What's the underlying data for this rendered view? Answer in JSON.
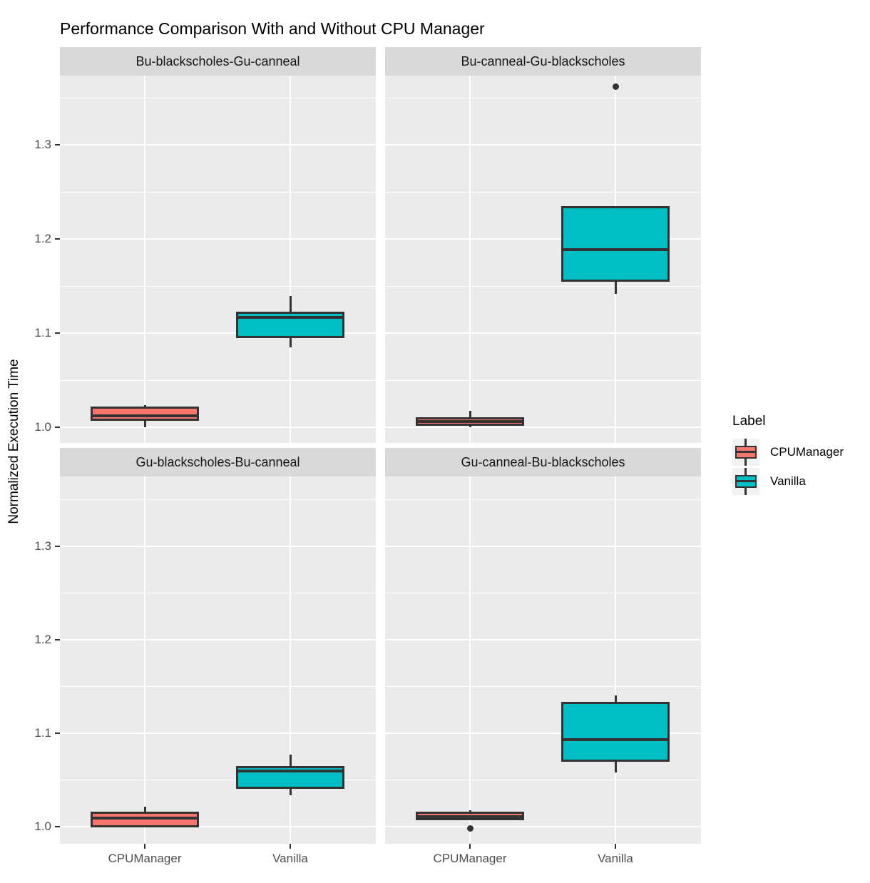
{
  "title": "Performance Comparison With and Without CPU Manager",
  "y_axis": {
    "label": "Normalized Execution Time",
    "tick_labels": [
      "1.0",
      "1.1",
      "1.2",
      "1.3"
    ],
    "tick_values": [
      1.0,
      1.1,
      1.2,
      1.3
    ],
    "minor_tick_values": [
      1.05,
      1.15,
      1.25,
      1.35
    ]
  },
  "x_axis": {
    "categories": [
      "CPUManager",
      "Vanilla"
    ]
  },
  "legend": {
    "title": "Label",
    "items": [
      {
        "label": "CPUManager",
        "color": "#F8766D"
      },
      {
        "label": "Vanilla",
        "color": "#00BFC4"
      }
    ]
  },
  "style": {
    "panel_bg": "#EBEBEB",
    "strip_bg": "#D9D9D9",
    "grid_color": "#FFFFFF",
    "box_border": "#333333",
    "outlier_color": "#333333",
    "tick_label_color": "#4D4D4D"
  },
  "chart_data": {
    "type": "boxplot",
    "title": "Performance Comparison With and Without CPU Manager",
    "xlabel": "",
    "ylabel": "Normalized Execution Time",
    "ylim": [
      0.982,
      1.376
    ],
    "grid": true,
    "legend_position": "right",
    "categories": [
      "CPUManager",
      "Vanilla"
    ],
    "series_colors": {
      "CPUManager": "#F8766D",
      "Vanilla": "#00BFC4"
    },
    "facets": [
      {
        "label": "Bu-blackscholes-Gu-canneal",
        "boxes": [
          {
            "category": "CPUManager",
            "whisker_low": 1.0,
            "q1": 1.007,
            "median": 1.012,
            "q3": 1.022,
            "whisker_high": 1.024,
            "outliers": []
          },
          {
            "category": "Vanilla",
            "whisker_low": 1.085,
            "q1": 1.095,
            "median": 1.117,
            "q3": 1.123,
            "whisker_high": 1.14,
            "outliers": []
          }
        ]
      },
      {
        "label": "Bu-canneal-Gu-blackscholes",
        "boxes": [
          {
            "category": "CPUManager",
            "whisker_low": 1.0,
            "q1": 1.002,
            "median": 1.006,
            "q3": 1.011,
            "whisker_high": 1.018,
            "outliers": []
          },
          {
            "category": "Vanilla",
            "whisker_low": 1.142,
            "q1": 1.155,
            "median": 1.189,
            "q3": 1.235,
            "whisker_high": 1.235,
            "outliers": [
              1.362
            ]
          }
        ]
      },
      {
        "label": "Gu-blackscholes-Bu-canneal",
        "boxes": [
          {
            "category": "CPUManager",
            "whisker_low": 0.999,
            "q1": 0.999,
            "median": 1.009,
            "q3": 1.016,
            "whisker_high": 1.021,
            "outliers": []
          },
          {
            "category": "Vanilla",
            "whisker_low": 1.033,
            "q1": 1.04,
            "median": 1.059,
            "q3": 1.065,
            "whisker_high": 1.077,
            "outliers": []
          }
        ]
      },
      {
        "label": "Gu-canneal-Bu-blackscholes",
        "boxes": [
          {
            "category": "CPUManager",
            "whisker_low": 1.007,
            "q1": 1.007,
            "median": 1.01,
            "q3": 1.016,
            "whisker_high": 1.017,
            "outliers": [
              0.998
            ]
          },
          {
            "category": "Vanilla",
            "whisker_low": 1.058,
            "q1": 1.069,
            "median": 1.093,
            "q3": 1.133,
            "whisker_high": 1.14,
            "outliers": []
          }
        ]
      }
    ]
  }
}
